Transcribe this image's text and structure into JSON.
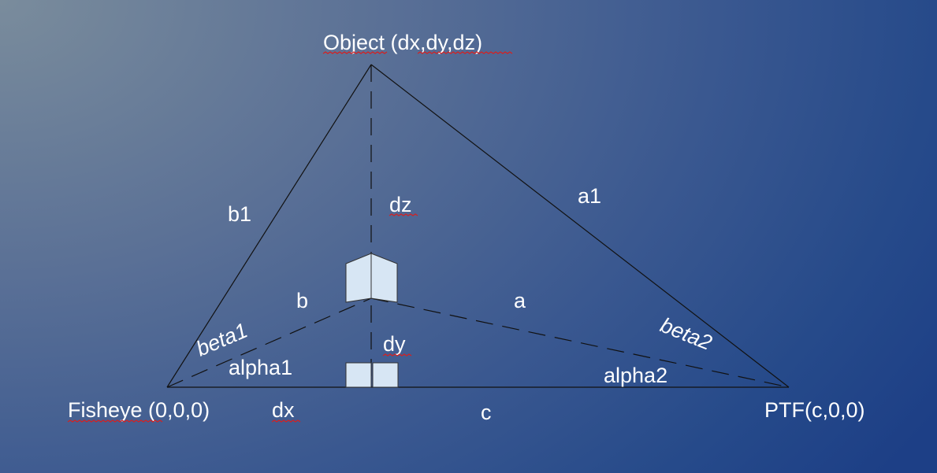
{
  "labels": {
    "object": "Object (dx,dy,dz)",
    "fisheye": "Fisheye (0,0,0)",
    "ptf": "PTF(c,0,0)",
    "b1": "b1",
    "a1": "a1",
    "dz": "dz",
    "b": "b",
    "a": "a",
    "beta1": "beta1",
    "beta2": "beta2",
    "dy": "dy",
    "alpha1": "alpha1",
    "alpha2": "alpha2",
    "dx": "dx",
    "c": "c"
  },
  "colors": {
    "label_text": "#ffffff",
    "lines": "#111111",
    "marker_fill": "#d7e6f4",
    "spellcheck_underline": "#d62020"
  }
}
